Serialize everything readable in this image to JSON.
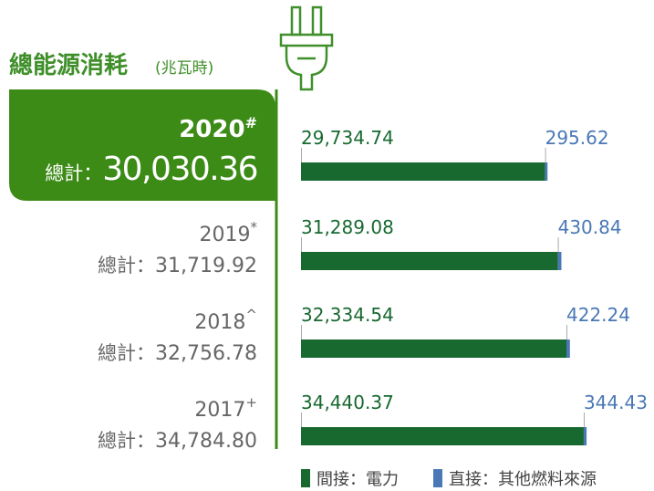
{
  "chart_data": {
    "type": "bar",
    "orientation": "horizontal",
    "stacked": true,
    "title": "總能源消耗",
    "unit": "(兆瓦時)",
    "categories": [
      "2020",
      "2019",
      "2018",
      "2017"
    ],
    "category_marks": [
      "#",
      "*",
      "^",
      "+"
    ],
    "total_label": "總計：",
    "totals": [
      {
        "value": 30030.36,
        "label": "30,030.36"
      },
      {
        "value": 31719.92,
        "label": "31,719.92"
      },
      {
        "value": 32756.78,
        "label": "32,756.78"
      },
      {
        "value": 34784.8,
        "label": "34,784.80"
      }
    ],
    "series": [
      {
        "name": "間接：電力",
        "color": "#17692f",
        "values": [
          29734.74,
          31289.08,
          32334.54,
          34440.37
        ],
        "value_labels": [
          "29,734.74",
          "31,289.08",
          "32,334.54",
          "34,440.37"
        ]
      },
      {
        "name": "直接：其他燃料來源",
        "color": "#4a78b5",
        "values": [
          295.62,
          430.84,
          422.24,
          344.43
        ],
        "value_labels": [
          "295.62",
          "430.84",
          "422.24",
          "344.43"
        ]
      }
    ],
    "xlim": [
      0,
      35000
    ]
  }
}
